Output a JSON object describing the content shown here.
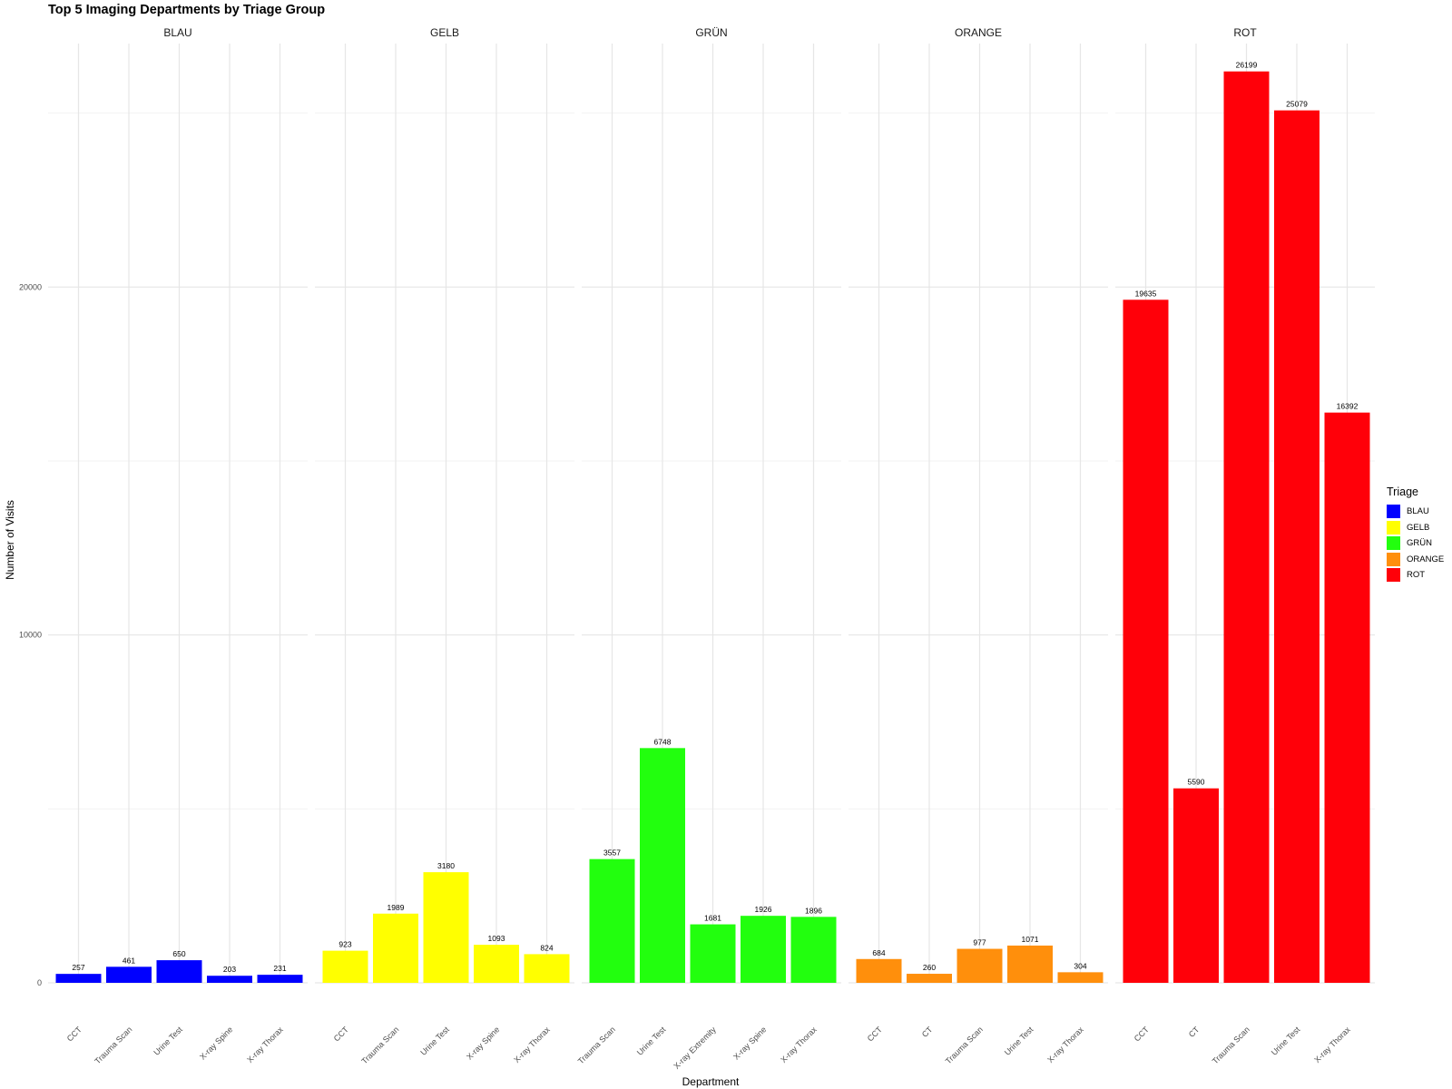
{
  "chart_data": {
    "type": "bar",
    "title": "Top 5 Imaging Departments by Triage Group",
    "xlabel": "Department",
    "ylabel": "Number of Visits",
    "ylim": [
      0,
      27000
    ],
    "y_ticks": [
      0,
      10000,
      20000
    ],
    "grid": true,
    "legend": {
      "title": "Triage",
      "placement": "right"
    },
    "facets": [
      {
        "name": "BLAU",
        "color": "#0000FF",
        "categories": [
          "CCT",
          "Trauma Scan",
          "Urine Test",
          "X-ray Spine",
          "X-ray Thorax"
        ],
        "values": [
          257,
          461,
          650,
          203,
          231
        ]
      },
      {
        "name": "GELB",
        "color": "#FFFF00",
        "categories": [
          "CCT",
          "Trauma Scan",
          "Urine Test",
          "X-ray Spine",
          "X-ray Thorax"
        ],
        "values": [
          923,
          1989,
          3180,
          1093,
          824
        ]
      },
      {
        "name": "GRÜN",
        "color": "#22FF0E",
        "categories": [
          "Trauma Scan",
          "Urine Test",
          "X-ray Extremity",
          "X-ray Spine",
          "X-ray Thorax"
        ],
        "values": [
          3557,
          6748,
          1681,
          1926,
          1896
        ]
      },
      {
        "name": "ORANGE",
        "color": "#FF8F0C",
        "categories": [
          "CCT",
          "CT",
          "Trauma Scan",
          "Urine Test",
          "X-ray Thorax"
        ],
        "values": [
          684,
          260,
          977,
          1071,
          304
        ]
      },
      {
        "name": "ROT",
        "color": "#FF0009",
        "categories": [
          "CCT",
          "CT",
          "Trauma Scan",
          "Urine Test",
          "X-ray Thorax"
        ],
        "values": [
          19635,
          5590,
          26199,
          25079,
          16392
        ]
      }
    ]
  }
}
